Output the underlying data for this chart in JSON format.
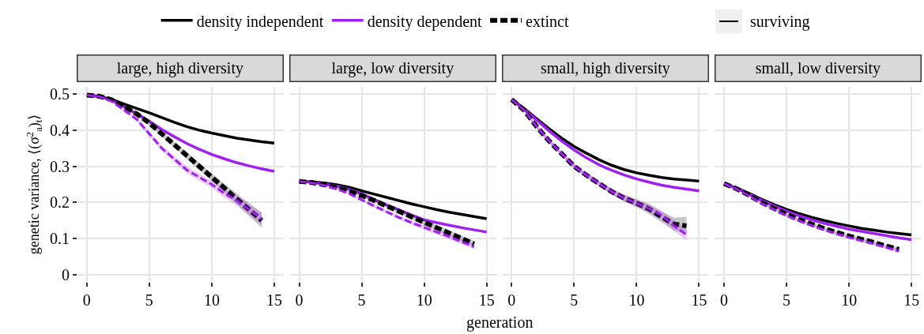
{
  "chart_data": [
    {
      "type": "line",
      "title": "large, high diversity",
      "ylabel": "genetic variance, ⟨(σ$^{2}$$_{a}$)$_{t}$⟩",
      "x": [
        0,
        1,
        2,
        3,
        4,
        5,
        6,
        7,
        8,
        9,
        10,
        11,
        12,
        13,
        14,
        15
      ],
      "xlim": [
        -0.75,
        15.75
      ],
      "xticks": [
        0,
        5,
        10,
        15
      ],
      "ylim": [
        -0.02,
        0.52
      ],
      "yticks": [
        0,
        0.1,
        0.2,
        0.3,
        0.4,
        0.5
      ],
      "grid": true,
      "legend": "top",
      "annotations": [
        "surviving"
      ],
      "series": [
        {
          "name": "density independent",
          "color": "#000000",
          "line_style": "solid",
          "values": [
            0.497,
            0.494,
            0.485,
            0.472,
            0.46,
            0.448,
            0.435,
            0.422,
            0.41,
            0.4,
            0.392,
            0.385,
            0.378,
            0.373,
            0.368,
            0.364
          ]
        },
        {
          "name": "density dependent",
          "color": "#a020f0",
          "line_style": "solid",
          "values": [
            0.497,
            0.493,
            0.483,
            0.465,
            0.445,
            0.425,
            0.402,
            0.382,
            0.363,
            0.347,
            0.333,
            0.321,
            0.31,
            0.301,
            0.293,
            0.286
          ]
        },
        {
          "name": "extinct",
          "color": "#000000",
          "line_style": "dashed",
          "x": [
            0,
            1,
            2,
            3,
            4,
            5,
            6,
            7,
            8,
            9,
            10,
            11,
            12,
            13,
            14
          ],
          "values": [
            0.497,
            0.494,
            0.484,
            0.465,
            0.445,
            0.42,
            0.39,
            0.36,
            0.33,
            0.3,
            0.27,
            0.24,
            0.21,
            0.18,
            0.15
          ],
          "lower": [
            0.495,
            0.492,
            0.481,
            0.461,
            0.44,
            0.414,
            0.383,
            0.352,
            0.321,
            0.29,
            0.26,
            0.228,
            0.195,
            0.162,
            0.13
          ],
          "upper": [
            0.499,
            0.496,
            0.487,
            0.469,
            0.45,
            0.426,
            0.397,
            0.368,
            0.339,
            0.31,
            0.28,
            0.252,
            0.225,
            0.198,
            0.172
          ]
        },
        {
          "color": "#a020f0",
          "line_style": "dashed",
          "x": [
            0,
            1,
            2,
            3,
            4,
            5,
            6,
            7,
            8,
            9,
            10,
            11,
            12,
            13,
            14
          ],
          "values": [
            0.497,
            0.493,
            0.48,
            0.455,
            0.43,
            0.39,
            0.35,
            0.32,
            0.29,
            0.27,
            0.25,
            0.225,
            0.205,
            0.18,
            0.155
          ],
          "lower": [
            0.495,
            0.491,
            0.477,
            0.45,
            0.424,
            0.383,
            0.342,
            0.311,
            0.28,
            0.26,
            0.24,
            0.214,
            0.192,
            0.165,
            0.138
          ],
          "upper": [
            0.499,
            0.495,
            0.483,
            0.46,
            0.436,
            0.397,
            0.358,
            0.329,
            0.3,
            0.28,
            0.26,
            0.236,
            0.218,
            0.195,
            0.172
          ]
        }
      ]
    },
    {
      "type": "line",
      "title": "large, low diversity",
      "xlabel": "generation",
      "x": [
        0,
        1,
        2,
        3,
        4,
        5,
        6,
        7,
        8,
        9,
        10,
        11,
        12,
        13,
        14,
        15
      ],
      "xlim": [
        -0.75,
        15.75
      ],
      "xticks": [
        0,
        5,
        10,
        15
      ],
      "ylim": [
        -0.02,
        0.52
      ],
      "yticks": [
        0,
        0.1,
        0.2,
        0.3,
        0.4,
        0.5
      ],
      "grid": true,
      "tick_labels": "x",
      "series": [
        {
          "name": "density independent",
          "color": "#000000",
          "line_style": "solid",
          "values": [
            0.258,
            0.257,
            0.254,
            0.249,
            0.242,
            0.232,
            0.223,
            0.214,
            0.205,
            0.196,
            0.188,
            0.18,
            0.173,
            0.167,
            0.161,
            0.155
          ]
        },
        {
          "name": "density dependent",
          "color": "#a020f0",
          "line_style": "solid",
          "values": [
            0.258,
            0.256,
            0.251,
            0.245,
            0.236,
            0.224,
            0.208,
            0.193,
            0.179,
            0.165,
            0.152,
            0.144,
            0.137,
            0.13,
            0.124,
            0.118
          ]
        },
        {
          "name": "extinct",
          "color": "#000000",
          "line_style": "dashed",
          "x": [
            0,
            1,
            2,
            3,
            4,
            5,
            6,
            7,
            8,
            9,
            10,
            11,
            12,
            13,
            14
          ],
          "values": [
            0.258,
            0.255,
            0.249,
            0.241,
            0.231,
            0.219,
            0.205,
            0.19,
            0.175,
            0.16,
            0.145,
            0.13,
            0.115,
            0.1,
            0.085
          ],
          "lower": [
            0.256,
            0.253,
            0.246,
            0.238,
            0.227,
            0.215,
            0.2,
            0.185,
            0.169,
            0.154,
            0.138,
            0.123,
            0.107,
            0.092,
            0.077
          ],
          "upper": [
            0.26,
            0.257,
            0.252,
            0.244,
            0.235,
            0.223,
            0.21,
            0.195,
            0.181,
            0.166,
            0.152,
            0.137,
            0.123,
            0.108,
            0.093
          ]
        },
        {
          "color": "#a020f0",
          "line_style": "dashed",
          "x": [
            0,
            1,
            2,
            3,
            4,
            5,
            6,
            7,
            8,
            9,
            10,
            11,
            12,
            13,
            14
          ],
          "values": [
            0.258,
            0.254,
            0.247,
            0.237,
            0.224,
            0.207,
            0.19,
            0.174,
            0.158,
            0.144,
            0.131,
            0.118,
            0.105,
            0.091,
            0.077
          ],
          "lower": [
            0.256,
            0.252,
            0.244,
            0.234,
            0.22,
            0.203,
            0.185,
            0.169,
            0.152,
            0.138,
            0.124,
            0.111,
            0.098,
            0.084,
            0.07
          ],
          "upper": [
            0.26,
            0.256,
            0.25,
            0.24,
            0.228,
            0.211,
            0.195,
            0.179,
            0.164,
            0.15,
            0.138,
            0.125,
            0.112,
            0.098,
            0.084
          ]
        }
      ]
    },
    {
      "type": "line",
      "title": "small, high diversity",
      "x": [
        0,
        1,
        2,
        3,
        4,
        5,
        6,
        7,
        8,
        9,
        10,
        11,
        12,
        13,
        14,
        15
      ],
      "xlim": [
        -0.75,
        15.75
      ],
      "xticks": [
        0,
        5,
        10,
        15
      ],
      "ylim": [
        -0.02,
        0.52
      ],
      "yticks": [
        0,
        0.1,
        0.2,
        0.3,
        0.4,
        0.5
      ],
      "grid": true,
      "tick_labels": "x",
      "series": [
        {
          "name": "density independent",
          "color": "#000000",
          "line_style": "solid",
          "values": [
            0.485,
            0.46,
            0.432,
            0.404,
            0.378,
            0.355,
            0.336,
            0.318,
            0.303,
            0.291,
            0.282,
            0.275,
            0.269,
            0.265,
            0.262,
            0.259
          ]
        },
        {
          "name": "density dependent",
          "color": "#a020f0",
          "line_style": "solid",
          "values": [
            0.485,
            0.458,
            0.428,
            0.398,
            0.37,
            0.345,
            0.323,
            0.304,
            0.289,
            0.276,
            0.265,
            0.256,
            0.248,
            0.242,
            0.237,
            0.232
          ]
        },
        {
          "name": "extinct",
          "color": "#000000",
          "line_style": "dashed",
          "x": [
            0,
            1,
            2,
            3,
            4,
            5,
            6,
            7,
            8,
            9,
            10,
            11,
            12,
            13,
            14
          ],
          "values": [
            0.485,
            0.455,
            0.41,
            0.37,
            0.335,
            0.3,
            0.275,
            0.252,
            0.23,
            0.212,
            0.198,
            0.182,
            0.16,
            0.14,
            0.135
          ],
          "lower": [
            0.483,
            0.451,
            0.405,
            0.365,
            0.329,
            0.294,
            0.268,
            0.245,
            0.222,
            0.202,
            0.187,
            0.168,
            0.145,
            0.122,
            0.115
          ],
          "upper": [
            0.487,
            0.459,
            0.415,
            0.375,
            0.341,
            0.306,
            0.282,
            0.259,
            0.238,
            0.222,
            0.209,
            0.196,
            0.175,
            0.158,
            0.16
          ]
        },
        {
          "color": "#a020f0",
          "line_style": "dashed",
          "x": [
            0,
            1,
            2,
            3,
            4,
            5,
            6,
            7,
            8,
            9,
            10,
            11,
            12,
            13,
            14
          ],
          "values": [
            0.485,
            0.455,
            0.41,
            0.37,
            0.335,
            0.3,
            0.275,
            0.252,
            0.23,
            0.212,
            0.198,
            0.183,
            0.165,
            0.135,
            0.11
          ],
          "lower": [
            0.483,
            0.451,
            0.405,
            0.365,
            0.329,
            0.294,
            0.268,
            0.245,
            0.222,
            0.203,
            0.188,
            0.172,
            0.152,
            0.12,
            0.095
          ],
          "upper": [
            0.487,
            0.459,
            0.415,
            0.375,
            0.341,
            0.306,
            0.282,
            0.259,
            0.238,
            0.221,
            0.208,
            0.194,
            0.178,
            0.15,
            0.125
          ]
        }
      ]
    },
    {
      "type": "line",
      "title": "small, low diversity",
      "x": [
        0,
        1,
        2,
        3,
        4,
        5,
        6,
        7,
        8,
        9,
        10,
        11,
        12,
        13,
        14,
        15
      ],
      "xlim": [
        -0.75,
        15.75
      ],
      "xticks": [
        0,
        5,
        10,
        15
      ],
      "ylim": [
        -0.02,
        0.52
      ],
      "yticks": [
        0,
        0.1,
        0.2,
        0.3,
        0.4,
        0.5
      ],
      "grid": true,
      "tick_labels": "x",
      "series": [
        {
          "name": "density independent",
          "color": "#000000",
          "line_style": "solid",
          "values": [
            0.252,
            0.24,
            0.225,
            0.209,
            0.194,
            0.181,
            0.169,
            0.159,
            0.15,
            0.142,
            0.135,
            0.128,
            0.123,
            0.118,
            0.114,
            0.11
          ]
        },
        {
          "name": "density dependent",
          "color": "#a020f0",
          "line_style": "solid",
          "values": [
            0.252,
            0.239,
            0.223,
            0.206,
            0.19,
            0.176,
            0.163,
            0.152,
            0.142,
            0.134,
            0.126,
            0.12,
            0.114,
            0.108,
            0.102,
            0.097
          ]
        },
        {
          "name": "extinct",
          "color": "#000000",
          "line_style": "dashed",
          "x": [
            0,
            1,
            2,
            3,
            4,
            5,
            6,
            7,
            8,
            9,
            10,
            11,
            12,
            13,
            14
          ],
          "values": [
            0.252,
            0.238,
            0.22,
            0.2,
            0.183,
            0.167,
            0.153,
            0.14,
            0.128,
            0.117,
            0.107,
            0.098,
            0.089,
            0.079,
            0.07
          ],
          "lower": [
            0.25,
            0.236,
            0.217,
            0.197,
            0.179,
            0.163,
            0.149,
            0.136,
            0.124,
            0.113,
            0.103,
            0.094,
            0.085,
            0.075,
            0.065
          ],
          "upper": [
            0.254,
            0.24,
            0.223,
            0.203,
            0.187,
            0.171,
            0.157,
            0.144,
            0.132,
            0.121,
            0.111,
            0.102,
            0.093,
            0.083,
            0.075
          ]
        },
        {
          "color": "#a020f0",
          "line_style": "dashed",
          "x": [
            0,
            1,
            2,
            3,
            4,
            5,
            6,
            7,
            8,
            9,
            10,
            11,
            12,
            13,
            14
          ],
          "values": [
            0.252,
            0.237,
            0.218,
            0.197,
            0.18,
            0.163,
            0.149,
            0.136,
            0.124,
            0.113,
            0.103,
            0.094,
            0.085,
            0.075,
            0.065
          ],
          "lower": [
            0.25,
            0.235,
            0.215,
            0.194,
            0.176,
            0.159,
            0.145,
            0.132,
            0.12,
            0.109,
            0.099,
            0.09,
            0.081,
            0.071,
            0.06
          ],
          "upper": [
            0.254,
            0.239,
            0.221,
            0.2,
            0.184,
            0.167,
            0.153,
            0.14,
            0.128,
            0.117,
            0.107,
            0.098,
            0.089,
            0.079,
            0.07
          ]
        }
      ]
    }
  ]
}
